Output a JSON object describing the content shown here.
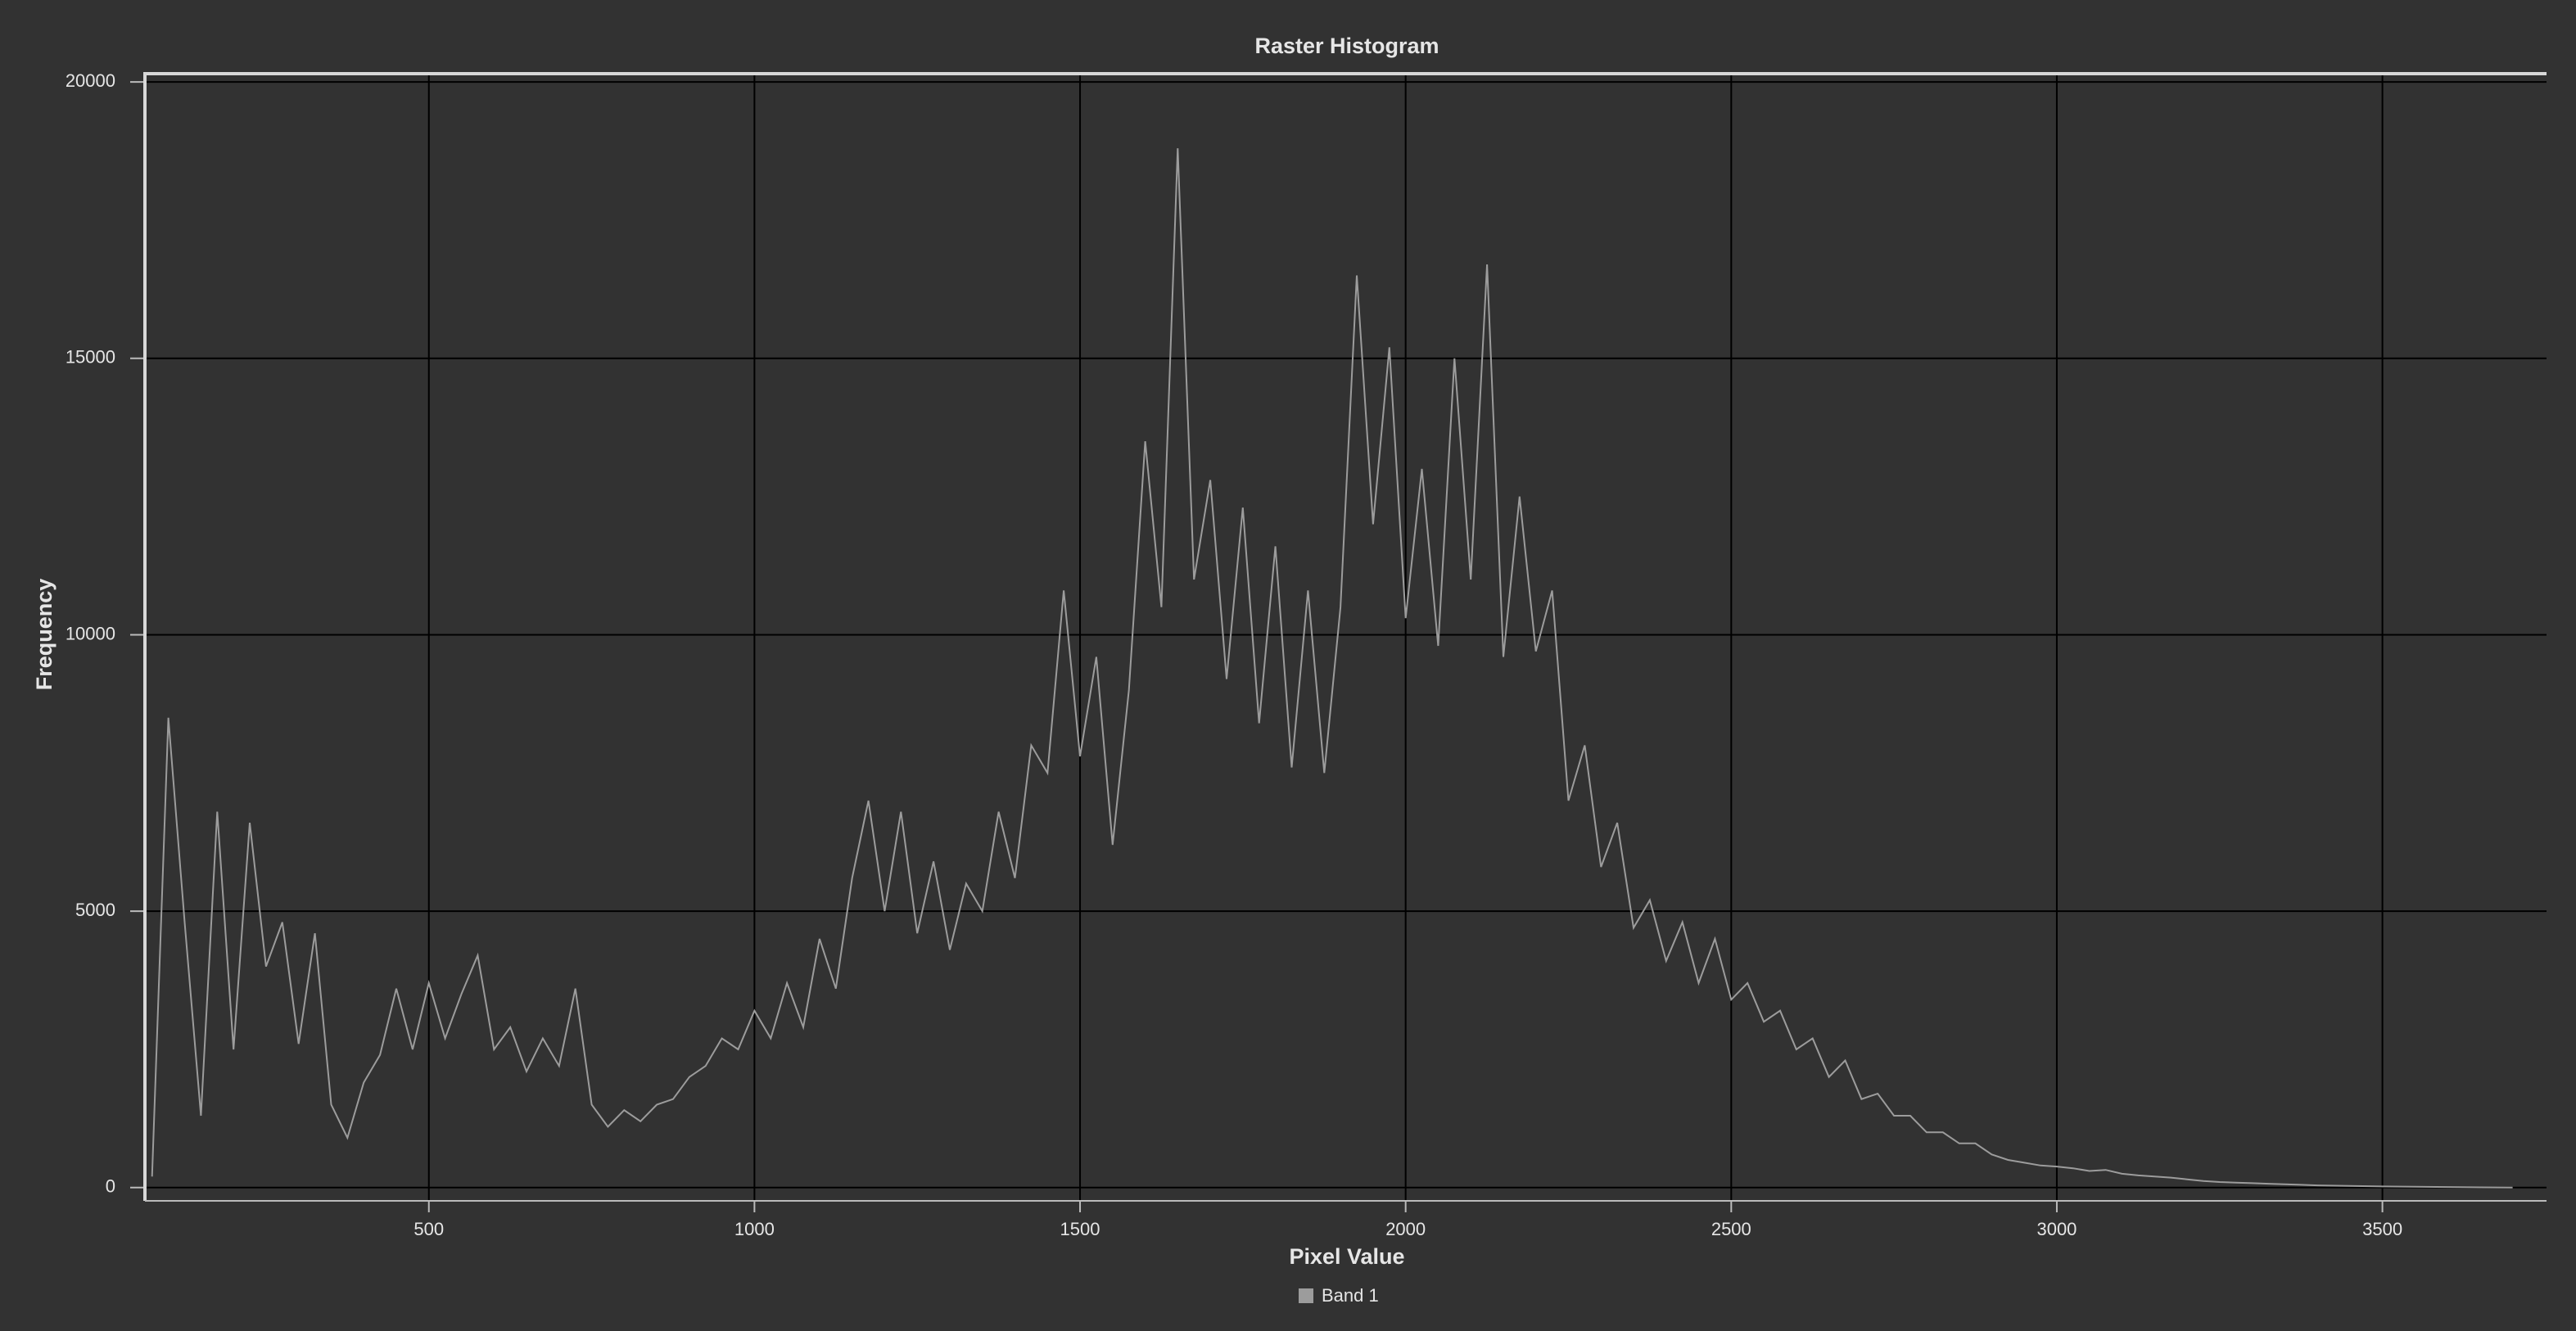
{
  "chart_data": {
    "type": "line",
    "title": "Raster Histogram",
    "x_label": "Pixel Value",
    "y_label": "Frequency",
    "x": [
      75,
      100,
      125,
      150,
      175,
      200,
      225,
      250,
      275,
      300,
      325,
      350,
      375,
      400,
      425,
      450,
      475,
      500,
      525,
      550,
      575,
      600,
      625,
      650,
      675,
      700,
      725,
      750,
      775,
      800,
      825,
      850,
      875,
      900,
      925,
      950,
      975,
      1000,
      1025,
      1050,
      1075,
      1100,
      1125,
      1150,
      1175,
      1200,
      1225,
      1250,
      1275,
      1300,
      1325,
      1350,
      1375,
      1400,
      1425,
      1450,
      1475,
      1500,
      1525,
      1550,
      1575,
      1600,
      1625,
      1650,
      1675,
      1700,
      1725,
      1750,
      1775,
      1800,
      1825,
      1850,
      1875,
      1900,
      1925,
      1950,
      1975,
      2000,
      2025,
      2050,
      2075,
      2100,
      2125,
      2150,
      2175,
      2200,
      2225,
      2250,
      2275,
      2300,
      2325,
      2350,
      2375,
      2400,
      2425,
      2450,
      2475,
      2500,
      2525,
      2550,
      2575,
      2600,
      2625,
      2650,
      2675,
      2700,
      2725,
      2750,
      2775,
      2800,
      2825,
      2850,
      2875,
      2900,
      2925,
      2950,
      2975,
      3000,
      3025,
      3050,
      3075,
      3100,
      3125,
      3150,
      3175,
      3200,
      3225,
      3250,
      3275,
      3300,
      3325,
      3350,
      3375,
      3400,
      3450,
      3500,
      3550,
      3600,
      3650,
      3700
    ],
    "series": [
      {
        "name": "Band 1",
        "color": "#9c9c9c",
        "values": [
          200,
          8500,
          4800,
          1300,
          6800,
          2500,
          6600,
          4000,
          4800,
          2600,
          4600,
          1500,
          900,
          1900,
          2400,
          3600,
          2500,
          3700,
          2700,
          3500,
          4200,
          2500,
          2900,
          2100,
          2700,
          2200,
          3600,
          1500,
          1100,
          1400,
          1200,
          1500,
          1600,
          2000,
          2200,
          2700,
          2500,
          3200,
          2700,
          3700,
          2900,
          4500,
          3600,
          5600,
          7000,
          5000,
          6800,
          4600,
          5900,
          4300,
          5500,
          5000,
          6800,
          5600,
          8000,
          7500,
          10800,
          7800,
          9600,
          6200,
          9000,
          13500,
          10500,
          18800,
          11000,
          12800,
          9200,
          12300,
          8400,
          11600,
          7600,
          10800,
          7500,
          10500,
          16500,
          12000,
          15200,
          10300,
          13000,
          9800,
          15000,
          11000,
          16700,
          9600,
          12500,
          9700,
          10800,
          7000,
          8000,
          5800,
          6600,
          4700,
          5200,
          4100,
          4800,
          3700,
          4500,
          3400,
          3700,
          3000,
          3200,
          2500,
          2700,
          2000,
          2300,
          1600,
          1700,
          1300,
          1300,
          1000,
          1000,
          800,
          800,
          600,
          500,
          450,
          400,
          380,
          350,
          300,
          320,
          250,
          220,
          200,
          180,
          150,
          120,
          100,
          90,
          80,
          70,
          60,
          50,
          40,
          30,
          20,
          15,
          10,
          5,
          2
        ]
      }
    ],
    "xlim": [
      64,
      3752
    ],
    "ylim": [
      -240,
      20150
    ],
    "xticks": [
      500,
      1000,
      1500,
      2000,
      2500,
      3000,
      3500
    ],
    "yticks": [
      0,
      5000,
      10000,
      15000,
      20000
    ],
    "grid": true
  }
}
